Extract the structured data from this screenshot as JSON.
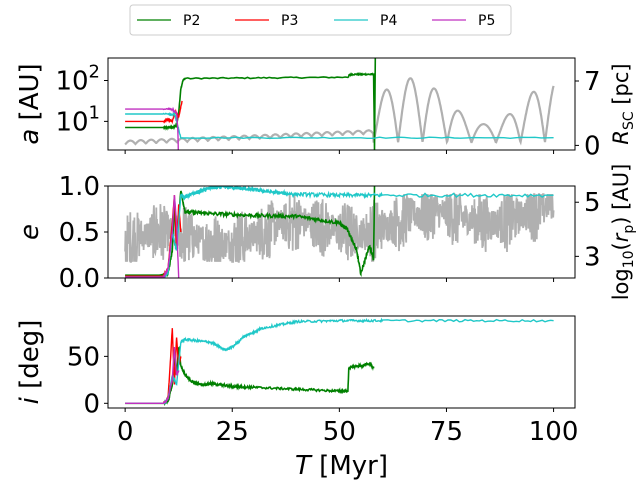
{
  "chart_data": {
    "type": "line",
    "legend": {
      "placement": "top-center",
      "entries": [
        {
          "name": "P2",
          "color": "#008000"
        },
        {
          "name": "P3",
          "color": "#ff0000"
        },
        {
          "name": "P4",
          "color": "#20c8c8"
        },
        {
          "name": "P5",
          "color": "#c030c0"
        }
      ]
    },
    "x_axis": {
      "label_var": "T",
      "label_unit": " [Myr]",
      "range": [
        -4,
        105
      ],
      "ticks": [
        "0",
        "25",
        "50",
        "75",
        "100"
      ],
      "tick_values": [
        0,
        25,
        50,
        75,
        100
      ]
    },
    "cluster_color": "#b0b0b0",
    "panels": [
      {
        "name": "semi-major-axis",
        "ylabel_var": "a",
        "ylabel_unit": " [AU]",
        "scale": "log",
        "ylim_log10": [
          0.3,
          2.55
        ],
        "yticks": [
          {
            "base": "10",
            "exp": "1",
            "value_log10": 1
          },
          {
            "base": "10",
            "exp": "2",
            "value_log10": 2
          }
        ],
        "right_axis": {
          "label_var": "R",
          "label_sub": "SC",
          "label_unit": " [pc]",
          "range": [
            -0.5,
            9.5
          ],
          "ticks": [
            "0",
            "7"
          ],
          "tick_values": [
            0,
            7
          ]
        },
        "series": [
          {
            "name": "P2",
            "t": [
              0,
              8,
              10,
              11,
              12,
              12.5,
              13,
              13.5,
              14,
              52,
              52.5,
              58,
              58.2,
              58.4
            ],
            "y": [
              0.85,
              0.85,
              0.85,
              0.85,
              0.9,
              1.2,
              1.8,
              2.0,
              2.05,
              2.08,
              2.15,
              2.15,
              0.3,
              2.55
            ]
          },
          {
            "name": "P3",
            "t": [
              0,
              9,
              10,
              11,
              11.8,
              12.5,
              13,
              13.3
            ],
            "y": [
              1.0,
              1.0,
              1.05,
              1.0,
              1.25,
              1.1,
              1.35,
              1.5
            ]
          },
          {
            "name": "P4",
            "t": [
              0,
              10,
              11,
              11.5,
              12,
              12.5,
              13,
              100
            ],
            "y": [
              1.18,
              1.18,
              1.15,
              1.2,
              1.0,
              0.8,
              0.6,
              0.6
            ]
          },
          {
            "name": "P5",
            "t": [
              0,
              10,
              11,
              12,
              12.3,
              12.4
            ],
            "y": [
              1.3,
              1.3,
              1.3,
              1.2,
              0.8,
              0.3
            ]
          }
        ]
      },
      {
        "name": "eccentricity",
        "ylabel_var": "e",
        "ylabel_unit": "",
        "scale": "linear",
        "ylim": [
          0,
          1.0
        ],
        "yticks": [
          "0.0",
          "0.5",
          "1.0"
        ],
        "ytick_values": [
          0,
          0.5,
          1.0
        ],
        "right_axis": {
          "label": "log10(rp) [AU]",
          "range": [
            2.2,
            5.6
          ],
          "ticks": [
            "3",
            "5"
          ],
          "tick_values": [
            3,
            5
          ]
        },
        "series": [
          {
            "name": "P2",
            "t": [
              0,
              8,
              10,
              11,
              11.5,
              12,
              13,
              14,
              20,
              30,
              40,
              50,
              52,
              54,
              55,
              56,
              57,
              58,
              58.2
            ],
            "y": [
              0.03,
              0.03,
              0.05,
              0.3,
              0.8,
              0.4,
              0.95,
              0.72,
              0.7,
              0.68,
              0.67,
              0.6,
              0.52,
              0.3,
              0.05,
              0.2,
              0.35,
              0.2,
              1.0
            ]
          },
          {
            "name": "P3",
            "t": [
              0,
              9,
              10,
              11,
              11.5,
              12,
              12.5,
              13
            ],
            "y": [
              0.02,
              0.02,
              0.1,
              0.6,
              0.9,
              0.3,
              0.8,
              0.5
            ]
          },
          {
            "name": "P4",
            "t": [
              0,
              9,
              10,
              11,
              12,
              13,
              14,
              16,
              18,
              20,
              23,
              26,
              30,
              35,
              40,
              50,
              60,
              100
            ],
            "y": [
              0.01,
              0.01,
              0.05,
              0.5,
              0.3,
              0.9,
              0.88,
              0.92,
              0.95,
              0.98,
              0.99,
              0.98,
              0.96,
              0.93,
              0.91,
              0.9,
              0.9,
              0.9
            ]
          },
          {
            "name": "P5",
            "t": [
              0,
              9,
              10,
              11,
              11.5,
              12,
              12.5
            ],
            "y": [
              0.01,
              0.01,
              0.1,
              0.5,
              0.9,
              0.6,
              0.0
            ]
          }
        ]
      },
      {
        "name": "inclination",
        "ylabel_var": "i",
        "ylabel_unit": " [deg]",
        "scale": "linear",
        "ylim": [
          -5,
          93
        ],
        "yticks": [
          "0",
          "50"
        ],
        "ytick_values": [
          0,
          50
        ],
        "series": [
          {
            "name": "P2",
            "t": [
              0,
              9,
              10,
              11,
              11.5,
              12,
              12.5,
              13,
              14,
              15,
              16,
              18,
              20,
              25,
              30,
              40,
              50,
              52,
              52.2,
              55,
              57,
              58
            ],
            "y": [
              0,
              0,
              2,
              20,
              50,
              30,
              60,
              40,
              30,
              25,
              22,
              20,
              21,
              18,
              17,
              15,
              13,
              13,
              38,
              40,
              42,
              38
            ]
          },
          {
            "name": "P3",
            "t": [
              0,
              9,
              10,
              10.5,
              11,
              11.5,
              12,
              12.5,
              13
            ],
            "y": [
              0,
              0,
              5,
              40,
              80,
              20,
              70,
              40,
              50
            ]
          },
          {
            "name": "P4",
            "t": [
              0,
              9,
              10,
              11,
              12,
              13,
              14,
              20,
              22,
              23.5,
              25,
              28,
              32,
              40,
              50,
              60,
              100
            ],
            "y": [
              0,
              0,
              5,
              30,
              20,
              65,
              68,
              65,
              60,
              57,
              60,
              72,
              80,
              87,
              88,
              88,
              88
            ]
          },
          {
            "name": "P5",
            "t": [
              0,
              9,
              10,
              11,
              11.5,
              12,
              12.5
            ],
            "y": [
              0,
              0,
              5,
              25,
              60,
              30,
              35
            ]
          }
        ]
      }
    ]
  }
}
